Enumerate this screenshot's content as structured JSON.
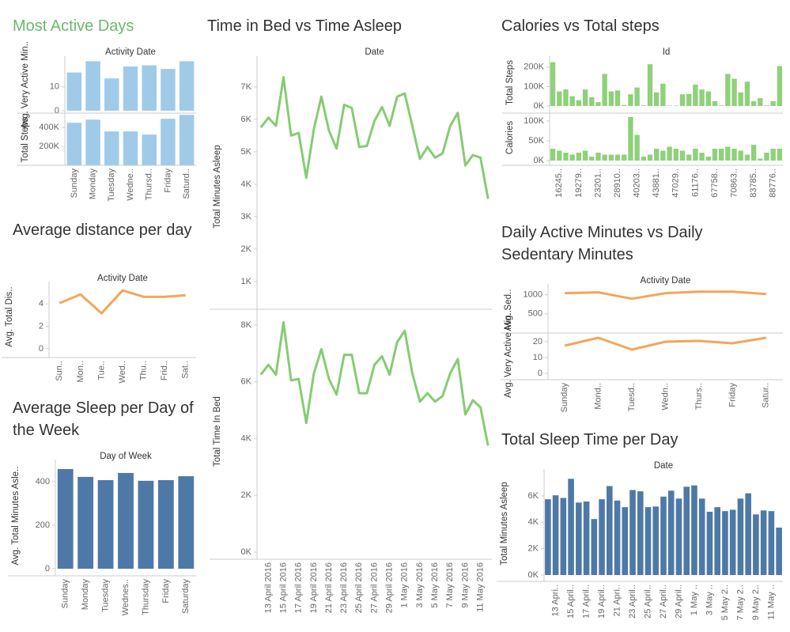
{
  "chart_data": [
    {
      "type": "bar",
      "title": "Most Active Days",
      "title_color": "#6cb86c",
      "header": "Activity Date",
      "categories": [
        "Sunday",
        "Monday",
        "Tuesday",
        "Wedne..",
        "Thursd..",
        "Friday",
        "Saturd.."
      ],
      "panels": [
        {
          "ylabel": "Avg. Very Active Min..",
          "color": "#a0cbe8",
          "ylim": [
            0,
            21.5
          ],
          "yticks": [
            0,
            10
          ],
          "values": [
            16,
            20.7,
            13.5,
            18.5,
            19,
            17.5,
            20.7
          ]
        },
        {
          "ylabel": "Total Steps",
          "color": "#a0cbe8",
          "ylim": [
            0,
            535000
          ],
          "yticks": [
            {
              "value": 200000,
              "label": "200K"
            },
            {
              "value": 400000,
              "label": "400K"
            }
          ],
          "values": [
            450000,
            483000,
            358000,
            358000,
            325000,
            492000,
            533000
          ]
        }
      ]
    },
    {
      "type": "line",
      "title": "Average distance per day",
      "header": "Activity Date",
      "categories": [
        "Sun..",
        "Mon..",
        "Tue..",
        "Wed..",
        "Thu..",
        "Frid..",
        "Sat.."
      ],
      "panels": [
        {
          "ylabel": "Avg. Total Dis..",
          "color": "#f5a55a",
          "ylim": [
            0,
            5.7
          ],
          "yticks": [
            0,
            2,
            4
          ],
          "values": [
            4.07,
            4.84,
            3.16,
            5.19,
            4.63,
            4.63,
            4.77
          ]
        }
      ]
    },
    {
      "type": "bar",
      "title": "Average Sleep per Day of the Week",
      "header": "Day of Week",
      "categories": [
        "Sunday",
        "Monday",
        "Tuesday",
        "Wednes..",
        "Thursday",
        "Friday",
        "Saturday"
      ],
      "panels": [
        {
          "ylabel": "Avg. Total Minutes Asle..",
          "color": "#4e79a7",
          "ylim": [
            0,
            487
          ],
          "yticks": [
            0,
            200,
            400
          ],
          "values": [
            458,
            422,
            407,
            440,
            404,
            407,
            425
          ]
        }
      ]
    },
    {
      "type": "line",
      "title": "Time in Bed vs Time Asleep",
      "header": "Date",
      "categories": [
        null,
        "13 April 2016",
        null,
        "15 April 2016",
        null,
        "17 April 2016",
        null,
        "19 April 2016",
        null,
        "21 April 2016",
        null,
        "23 April 2016",
        null,
        "25 April 2016",
        null,
        "27 April 2016",
        null,
        "29 April 2016",
        null,
        "1 May 2016",
        null,
        "3 May 2016",
        null,
        "5 May 2016",
        null,
        "7 May 2016",
        null,
        "9 May 2016",
        null,
        "11 May 2016",
        null
      ],
      "panels": [
        {
          "ylabel": "Total Minutes Asleep",
          "color": "#86cc73",
          "ylim": [
            0,
            7850
          ],
          "yticks": [
            {
              "value": 1000,
              "label": "1K"
            },
            {
              "value": 2000,
              "label": "2K"
            },
            {
              "value": 3000,
              "label": "3K"
            },
            {
              "value": 4000,
              "label": "4K"
            },
            {
              "value": 5000,
              "label": "5K"
            },
            {
              "value": 6000,
              "label": "6K"
            },
            {
              "value": 7000,
              "label": "7K"
            }
          ],
          "values": [
            5750,
            6050,
            5800,
            7300,
            5500,
            5580,
            4200,
            5700,
            6700,
            5650,
            5100,
            6450,
            6350,
            5150,
            5180,
            5950,
            6380,
            5800,
            6700,
            6800,
            5800,
            4780,
            5150,
            4820,
            4950,
            5800,
            6200,
            4580,
            4900,
            4820,
            3550
          ]
        },
        {
          "ylabel": "Total Time In Bed",
          "color": "#86cc73",
          "ylim": [
            0,
            8500
          ],
          "yticks": [
            {
              "value": 0,
              "label": "0K"
            },
            {
              "value": 2000,
              "label": "2K"
            },
            {
              "value": 4000,
              "label": "4K"
            },
            {
              "value": 6000,
              "label": "6K"
            },
            {
              "value": 8000,
              "label": "8K"
            }
          ],
          "values": [
            6250,
            6600,
            6250,
            8100,
            6050,
            6100,
            4550,
            6300,
            7150,
            6100,
            5550,
            6950,
            6950,
            5600,
            5600,
            6600,
            6900,
            6250,
            7400,
            7800,
            6300,
            5300,
            5600,
            5300,
            5500,
            6300,
            6800,
            4850,
            5350,
            5100,
            3750
          ]
        }
      ]
    },
    {
      "type": "bar",
      "title": "Calories vs Total steps",
      "header": "Id",
      "categories": [
        null,
        "16245..",
        null,
        null,
        "19279..",
        null,
        null,
        "23201..",
        null,
        null,
        "28910..",
        null,
        null,
        "40203..",
        null,
        null,
        "43881..",
        null,
        null,
        "47029..",
        null,
        null,
        "61176..",
        null,
        null,
        "67758..",
        null,
        null,
        "70863..",
        null,
        null,
        "83785..",
        null,
        null,
        "88776..",
        null
      ],
      "panels": [
        {
          "ylabel": "Total Steps",
          "color": "#8fd17a",
          "ylim": [
            0,
            240000
          ],
          "yticks": [
            {
              "value": 0,
              "label": "0K"
            },
            {
              "value": 100000,
              "label": "100K"
            },
            {
              "value": 200000,
              "label": "200K"
            }
          ],
          "values": [
            225000,
            75000,
            85000,
            50000,
            30000,
            85000,
            45000,
            20000,
            165000,
            75000,
            80000,
            5000,
            60000,
            95000,
            3000,
            215000,
            70000,
            115000,
            2000,
            2000,
            60000,
            62000,
            110000,
            85000,
            75000,
            25000,
            3000,
            165000,
            140000,
            70000,
            125000,
            25000,
            40000,
            3000,
            25000,
            205000
          ]
        },
        {
          "ylabel": "Calories",
          "color": "#8fd17a",
          "ylim": [
            0,
            116000
          ],
          "yticks": [
            {
              "value": 0,
              "label": "0K"
            },
            {
              "value": 50000,
              "label": "50K"
            },
            {
              "value": 100000,
              "label": "100K"
            }
          ],
          "values": [
            30000,
            25000,
            20000,
            15000,
            20000,
            25000,
            10000,
            20000,
            15000,
            15000,
            15000,
            15000,
            110000,
            65000,
            10000,
            15000,
            30000,
            25000,
            35000,
            30000,
            25000,
            15000,
            30000,
            20000,
            10000,
            30000,
            30000,
            35000,
            30000,
            25000,
            15000,
            40000,
            5000,
            20000,
            30000,
            30000
          ]
        }
      ]
    },
    {
      "type": "line",
      "title": "Daily Active Minutes vs Daily Sedentary Minutes",
      "header": "Activity Date",
      "categories": [
        "Sunday",
        "Mond..",
        "Tuesd..",
        "Wedn..",
        "Thurs..",
        "Friday",
        "Satur.."
      ],
      "panels": [
        {
          "ylabel": "Avg. Sed..",
          "color": "#f5a55a",
          "ylim": [
            0,
            1200
          ],
          "yticks": [
            500,
            1000
          ],
          "values": [
            1042,
            1063,
            896,
            1042,
            1083,
            1083,
            1021
          ]
        },
        {
          "ylabel": "Avg. Very Active Min..",
          "color": "#f5a55a",
          "ylim": [
            0,
            24.5
          ],
          "yticks": [
            0,
            10,
            20
          ],
          "values": [
            17.5,
            22.5,
            15,
            20,
            20.5,
            19,
            22.5
          ]
        }
      ]
    },
    {
      "type": "bar",
      "title": "Total Sleep Time per Day",
      "header": "Date",
      "categories": [
        null,
        "13 Apri..",
        null,
        "15 April..",
        null,
        "17 April..",
        null,
        "19 April..",
        null,
        "21 Apri..",
        null,
        "23 April..",
        null,
        "25 April..",
        null,
        "27 April..",
        null,
        "29 April..",
        null,
        "1 May ..",
        null,
        "3 May ..",
        null,
        "5 May 2..",
        null,
        "7 May 2..",
        null,
        "9 May 2..",
        null,
        "11 May ..",
        null
      ],
      "panels": [
        {
          "ylabel": "Total Minutes Asleep",
          "color": "#4e79a7",
          "ylim": [
            0,
            7800
          ],
          "yticks": [
            {
              "value": 0,
              "label": "0K"
            },
            {
              "value": 2000,
              "label": "2K"
            },
            {
              "value": 4000,
              "label": "4K"
            },
            {
              "value": 6000,
              "label": "6K"
            }
          ],
          "values": [
            5750,
            6050,
            5850,
            7300,
            5500,
            5580,
            4250,
            5750,
            6750,
            5650,
            5150,
            6450,
            6350,
            5150,
            5200,
            5950,
            6400,
            5800,
            6700,
            6800,
            5800,
            4800,
            5150,
            4850,
            4950,
            5800,
            6200,
            4600,
            4900,
            4850,
            3600
          ]
        }
      ]
    }
  ]
}
